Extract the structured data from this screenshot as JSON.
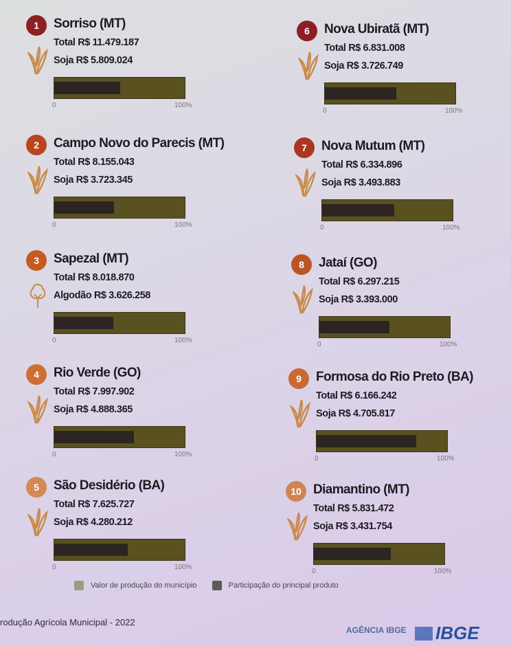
{
  "chart_data": {
    "type": "bar",
    "title": "",
    "tick_labels": [
      "0",
      "100%"
    ],
    "legend": [
      "Valor de produção do município",
      "Participação do principal produto"
    ],
    "items": [
      {
        "rank": "1",
        "name": "Sorriso (MT)",
        "total_label": "Total R$ 11.479.187",
        "product_label": "Soja R$ 5.809.024",
        "total": 11479187,
        "product": 5809024,
        "crop": "soja",
        "color": "#8e1f22"
      },
      {
        "rank": "2",
        "name": "Campo Novo do Parecis (MT)",
        "total_label": "Total R$ 8.155.043",
        "product_label": "Soja R$ 3.723.345",
        "total": 8155043,
        "product": 3723345,
        "crop": "soja",
        "color": "#b8471f"
      },
      {
        "rank": "3",
        "name": "Sapezal (MT)",
        "total_label": "Total R$ 8.018.870",
        "product_label": "Algodão R$ 3.626.258",
        "total": 8018870,
        "product": 3626258,
        "crop": "algodao",
        "color": "#c45a22"
      },
      {
        "rank": "4",
        "name": "Rio Verde (GO)",
        "total_label": "Total R$ 7.997.902",
        "product_label": "Soja R$ 4.888.365",
        "total": 7997902,
        "product": 4888365,
        "crop": "soja",
        "color": "#cd6f34"
      },
      {
        "rank": "5",
        "name": "São Desidério (BA)",
        "total_label": "Total R$ 7.625.727",
        "product_label": "Soja R$ 4.280.212",
        "total": 7625727,
        "product": 4280212,
        "crop": "soja",
        "color": "#d48853"
      },
      {
        "rank": "6",
        "name": "Nova Ubiratã (MT)",
        "total_label": "Total R$ 6.831.008",
        "product_label": "Soja R$ 3.726.749",
        "total": 6831008,
        "product": 3726749,
        "crop": "soja",
        "color": "#8b1f24"
      },
      {
        "rank": "7",
        "name": "Nova Mutum (MT)",
        "total_label": "Total R$ 6.334.896",
        "product_label": "Soja R$ 3.493.883",
        "total": 6334896,
        "product": 3493883,
        "crop": "soja",
        "color": "#a93620"
      },
      {
        "rank": "8",
        "name": "Jataí (GO)",
        "total_label": "Total R$ 6.297.215",
        "product_label": "Soja R$ 3.393.000",
        "total": 6297215,
        "product": 3393000,
        "crop": "soja",
        "color": "#bd5424"
      },
      {
        "rank": "9",
        "name": "Formosa do Rio Preto (BA)",
        "total_label": "Total R$ 6.166.242",
        "product_label": "Soja R$ 4.705.817",
        "total": 6166242,
        "product": 4705817,
        "crop": "soja",
        "color": "#c96a35"
      },
      {
        "rank": "10",
        "name": "Diamantino (MT)",
        "total_label": "Total R$ 5.831.472",
        "product_label": "Soja R$ 3.431.754",
        "total": 5831472,
        "product": 3431754,
        "crop": "soja",
        "color": "#d08455"
      }
    ]
  },
  "legend_colors": {
    "total": "#5a5120",
    "product": "#2c2523"
  },
  "footer": {
    "source": "rodução Agrícola Municipal - 2022",
    "agencia": "AGÊNCIA IBGE",
    "logo": "IBGE"
  }
}
